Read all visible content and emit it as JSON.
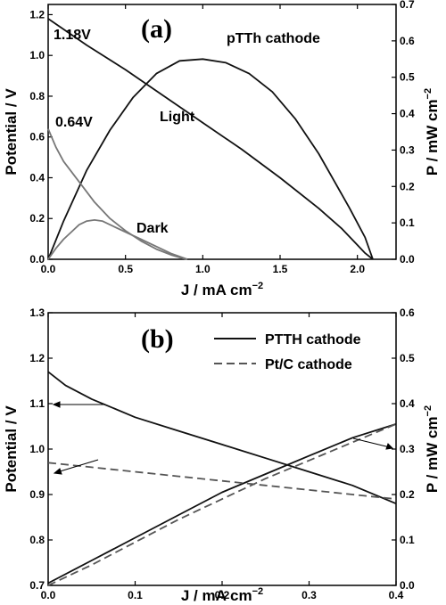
{
  "chart_data": [
    {
      "panel": "(a)",
      "type": "line",
      "title": "pTTh cathode",
      "xlabel": "J / mA cm",
      "xlabel_sup": "−2",
      "ylabel": "Potential / V",
      "y2label": "P / mW cm",
      "y2label_sup": "−2",
      "xlim": [
        0.0,
        2.25
      ],
      "ylim": [
        0.0,
        1.25
      ],
      "y2lim": [
        0.0,
        0.7
      ],
      "xticks": [
        "0.0",
        "0.5",
        "1.0",
        "1.5",
        "2.0"
      ],
      "yticks": [
        "0.0",
        "0.2",
        "0.4",
        "0.6",
        "0.8",
        "1.0",
        "1.2"
      ],
      "y2ticks": [
        "0.0",
        "0.1",
        "0.2",
        "0.3",
        "0.4",
        "0.5",
        "0.6",
        "0.7"
      ],
      "annotations": [
        "1.18V",
        "0.64V",
        "Light",
        "Dark"
      ],
      "colors": {
        "light": "#111111",
        "dark": "#777777"
      },
      "series": [
        {
          "name": "Light",
          "quantity": "potential",
          "axis": "left",
          "x": [
            0.0,
            0.25,
            0.5,
            0.75,
            1.0,
            1.25,
            1.5,
            1.75,
            1.9,
            2.0,
            2.05,
            2.1
          ],
          "y": [
            1.18,
            1.05,
            0.93,
            0.8,
            0.67,
            0.54,
            0.4,
            0.25,
            0.15,
            0.07,
            0.03,
            0.0
          ]
        },
        {
          "name": "Light",
          "quantity": "power",
          "axis": "right",
          "x": [
            0.0,
            0.1,
            0.25,
            0.4,
            0.55,
            0.7,
            0.85,
            1.0,
            1.15,
            1.3,
            1.45,
            1.6,
            1.75,
            1.85,
            1.95,
            2.05,
            2.1
          ],
          "y": [
            0.0,
            0.105,
            0.245,
            0.355,
            0.445,
            0.51,
            0.545,
            0.55,
            0.54,
            0.51,
            0.46,
            0.385,
            0.29,
            0.215,
            0.14,
            0.06,
            0.0
          ]
        },
        {
          "name": "Dark",
          "quantity": "potential",
          "axis": "left",
          "x": [
            0.0,
            0.05,
            0.1,
            0.2,
            0.3,
            0.4,
            0.5,
            0.6,
            0.7,
            0.8,
            0.87,
            0.9
          ],
          "y": [
            0.64,
            0.55,
            0.48,
            0.38,
            0.28,
            0.2,
            0.14,
            0.09,
            0.05,
            0.02,
            0.005,
            0.0
          ]
        },
        {
          "name": "Dark",
          "quantity": "power",
          "axis": "right",
          "x": [
            0.0,
            0.05,
            0.1,
            0.15,
            0.2,
            0.25,
            0.3,
            0.35,
            0.4,
            0.5,
            0.6,
            0.7,
            0.8,
            0.9
          ],
          "y": [
            0.0,
            0.03,
            0.055,
            0.075,
            0.095,
            0.105,
            0.108,
            0.105,
            0.095,
            0.075,
            0.055,
            0.035,
            0.015,
            0.0
          ]
        }
      ]
    },
    {
      "panel": "(b)",
      "type": "line",
      "xlabel": "J / mA cm",
      "xlabel_sup": "−2",
      "ylabel": "Potential / V",
      "y2label": "P / mW cm",
      "y2label_sup": "−2",
      "xlim": [
        0.0,
        0.4
      ],
      "ylim": [
        0.7,
        1.3
      ],
      "y2lim": [
        0.0,
        0.6
      ],
      "xticks": [
        "0.0",
        "0.1",
        "0.2",
        "0.3",
        "0.4"
      ],
      "yticks": [
        "0.7",
        "0.8",
        "0.9",
        "1.0",
        "1.1",
        "1.2",
        "1.3"
      ],
      "y2ticks": [
        "0.0",
        "0.1",
        "0.2",
        "0.3",
        "0.4",
        "0.5",
        "0.6"
      ],
      "legend_position": "top-right",
      "colors": {
        "pTTh": "#111111",
        "ptc": "#555555"
      },
      "series": [
        {
          "name": "PTTH cathode",
          "quantity": "potential",
          "axis": "left",
          "style": "solid",
          "x": [
            0.0,
            0.02,
            0.05,
            0.1,
            0.15,
            0.2,
            0.25,
            0.3,
            0.35,
            0.4
          ],
          "y": [
            1.17,
            1.14,
            1.11,
            1.07,
            1.04,
            1.01,
            0.98,
            0.95,
            0.92,
            0.88
          ]
        },
        {
          "name": "PTTH cathode",
          "quantity": "power",
          "axis": "right",
          "style": "solid",
          "x": [
            0.0,
            0.05,
            0.1,
            0.15,
            0.2,
            0.25,
            0.3,
            0.35,
            0.4
          ],
          "y": [
            0.005,
            0.055,
            0.105,
            0.155,
            0.205,
            0.245,
            0.285,
            0.325,
            0.355
          ]
        },
        {
          "name": "Pt/C cathode",
          "quantity": "potential",
          "axis": "left",
          "style": "dashed",
          "x": [
            0.0,
            0.05,
            0.1,
            0.15,
            0.2,
            0.25,
            0.3,
            0.35,
            0.4
          ],
          "y": [
            0.97,
            0.96,
            0.95,
            0.94,
            0.93,
            0.92,
            0.91,
            0.9,
            0.89
          ]
        },
        {
          "name": "Pt/C cathode",
          "quantity": "power",
          "axis": "right",
          "style": "dashed",
          "x": [
            0.0,
            0.05,
            0.1,
            0.15,
            0.2,
            0.25,
            0.3,
            0.35,
            0.4
          ],
          "y": [
            0.0,
            0.045,
            0.095,
            0.145,
            0.19,
            0.235,
            0.275,
            0.315,
            0.355
          ]
        }
      ]
    }
  ]
}
